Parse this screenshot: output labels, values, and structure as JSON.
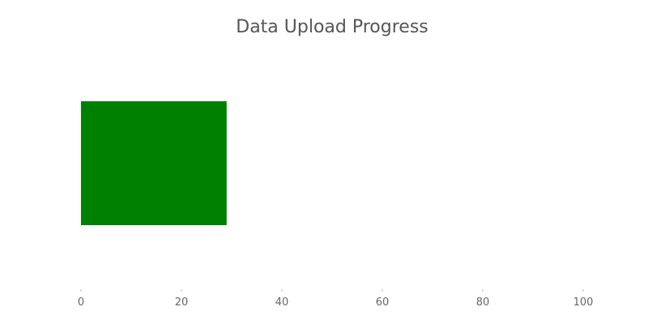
{
  "chart_data": {
    "type": "bar",
    "orientation": "horizontal",
    "title": "Data Upload Progress",
    "xlabel": "",
    "ylabel": "",
    "categories": [
      ""
    ],
    "values": [
      29
    ],
    "xlim": [
      0,
      100
    ],
    "xticks": [
      0,
      20,
      40,
      60,
      80,
      100
    ],
    "grid": false,
    "legend": "none",
    "colors": {
      "bar": "#008000",
      "tick_text": "#666666",
      "title_text": "#555555",
      "tick_mark": "#bbbbbb"
    }
  }
}
